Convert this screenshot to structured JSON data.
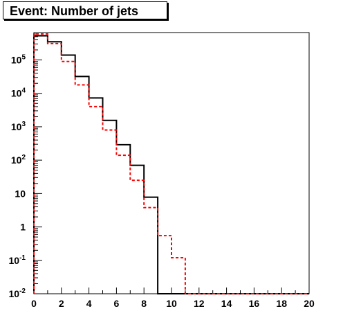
{
  "chart_data": {
    "type": "histogram",
    "title": "Event: Number of jets",
    "xlabel": "",
    "ylabel": "",
    "xlim": [
      0,
      20
    ],
    "ylim": [
      0.01,
      1000000
    ],
    "yscale": "log",
    "grid": false,
    "legend": "none",
    "bin_edges": [
      0,
      1,
      2,
      3,
      4,
      5,
      6,
      7,
      8,
      9,
      10,
      11,
      12,
      13,
      14,
      15,
      16,
      17,
      18,
      19,
      20
    ],
    "x_ticks": [
      0,
      2,
      4,
      6,
      8,
      10,
      12,
      14,
      16,
      18,
      20
    ],
    "x_tick_labels": [
      "0",
      "2",
      "4",
      "6",
      "8",
      "10",
      "12",
      "14",
      "16",
      "18",
      "20"
    ],
    "y_ticks": [
      {
        "value": 0.01,
        "base": "10",
        "exp": "-2"
      },
      {
        "value": 0.1,
        "base": "10",
        "exp": "-1"
      },
      {
        "value": 1,
        "base": "1",
        "exp": ""
      },
      {
        "value": 10,
        "base": "10",
        "exp": ""
      },
      {
        "value": 100,
        "base": "10",
        "exp": "2"
      },
      {
        "value": 1000,
        "base": "10",
        "exp": "3"
      },
      {
        "value": 10000,
        "base": "10",
        "exp": "4"
      },
      {
        "value": 100000,
        "base": "10",
        "exp": "5"
      }
    ],
    "series": [
      {
        "color": "#000000",
        "style": "solid",
        "values": [
          530000,
          350000,
          140000,
          32000,
          7300,
          1550,
          290,
          70,
          7.8,
          0,
          0,
          0,
          0,
          0,
          0,
          0,
          0,
          0,
          0,
          0
        ]
      },
      {
        "color": "#ff0000",
        "style": "dashed",
        "values": [
          600000,
          310000,
          90000,
          18000,
          4000,
          800,
          140,
          25,
          3.8,
          0.55,
          0.12,
          0.01,
          0.01,
          0.01,
          0.01,
          0.01,
          0.01,
          0.01,
          0.01,
          0.01
        ]
      }
    ]
  }
}
